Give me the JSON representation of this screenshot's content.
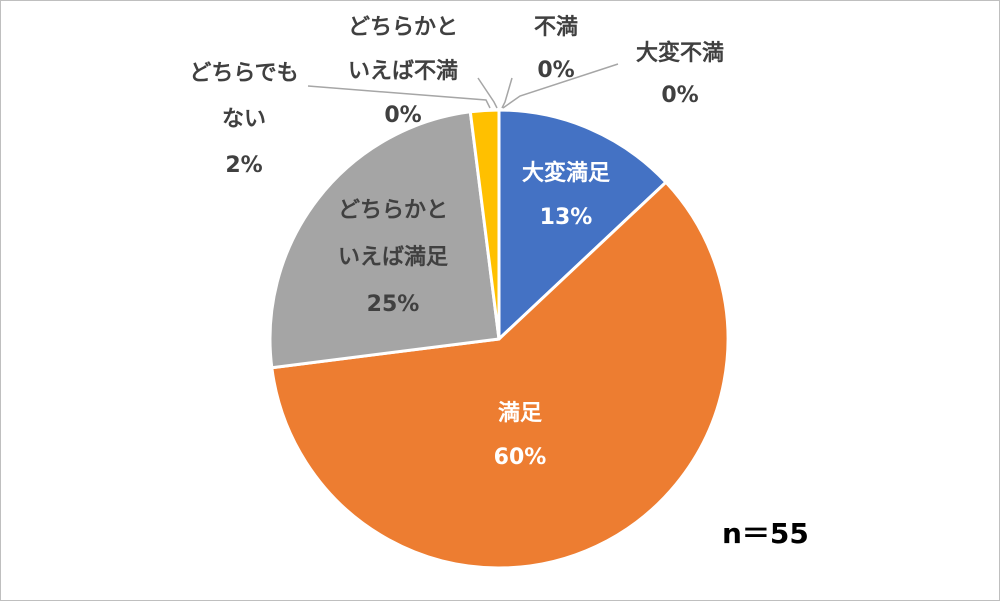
{
  "chart_data": {
    "type": "pie",
    "slices": [
      {
        "lines": [
          "大変満足",
          "13%"
        ],
        "value": 13,
        "color": "#4472C4",
        "label_color": "#ffffff"
      },
      {
        "lines": [
          "満足",
          "60%"
        ],
        "value": 60,
        "color": "#ED7D31",
        "label_color": "#ffffff"
      },
      {
        "lines": [
          "どちらかと",
          "いえば満足",
          "25%"
        ],
        "value": 25,
        "color": "#A5A5A5",
        "label_color": "#404040"
      },
      {
        "lines": [
          "どちらでも",
          "ない",
          "2%"
        ],
        "value": 2,
        "color": "#FFC000",
        "label_color": "#404040"
      },
      {
        "lines": [
          "どちらかと",
          "いえば不満",
          "0%"
        ],
        "value": 0,
        "color": "#5B9BD5",
        "label_color": "#404040"
      },
      {
        "lines": [
          "不満",
          "0%"
        ],
        "value": 0,
        "color": "#70AD47",
        "label_color": "#404040"
      },
      {
        "lines": [
          "大変不満",
          "0%"
        ],
        "value": 0,
        "color": "#264478",
        "label_color": "#404040"
      }
    ],
    "sample_size_label": "n＝55"
  }
}
